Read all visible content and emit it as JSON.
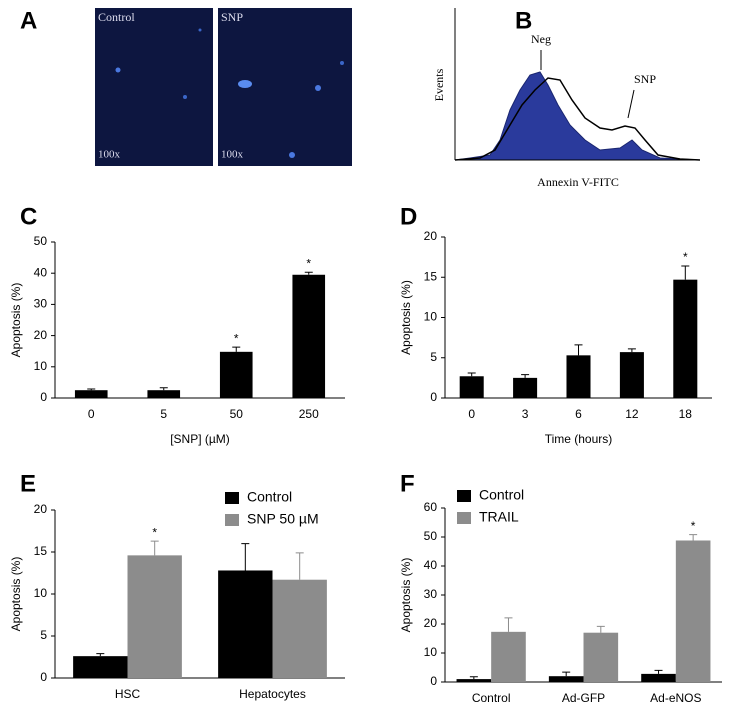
{
  "image_panel": {
    "label": "A",
    "images": [
      {
        "title": "Control",
        "magnification": "100x"
      },
      {
        "title": "SNP",
        "magnification": "100x"
      }
    ]
  },
  "flow_panel": {
    "label": "B",
    "x_label": "Annexin V-FITC",
    "y_label": "Events",
    "annotations": [
      "Neg",
      "SNP"
    ]
  },
  "chart_data": [
    {
      "type": "bar",
      "label": "C",
      "y_label": "Apoptosis (%)",
      "x_label": "[SNP] (µM)",
      "categories": [
        "0",
        "5",
        "50",
        "250"
      ],
      "values": [
        2.5,
        2.5,
        14.8,
        39.5
      ],
      "errors": [
        0.4,
        0.8,
        1.5,
        0.8
      ],
      "significance": [
        null,
        null,
        "*",
        "*"
      ],
      "color": "#000000",
      "ylim": [
        0,
        50
      ],
      "yticks": [
        0,
        10,
        20,
        30,
        40,
        50
      ]
    },
    {
      "type": "bar",
      "label": "D",
      "y_label": "Apoptosis (%)",
      "x_label": "Time (hours)",
      "categories": [
        "0",
        "3",
        "6",
        "12",
        "18"
      ],
      "values": [
        2.7,
        2.5,
        5.3,
        5.7,
        14.7
      ],
      "errors": [
        0.4,
        0.4,
        1.3,
        0.4,
        1.7
      ],
      "significance": [
        null,
        null,
        null,
        null,
        "*"
      ],
      "color": "#000000",
      "ylim": [
        0,
        20
      ],
      "yticks": [
        0,
        5,
        10,
        15,
        20
      ]
    },
    {
      "type": "grouped_bar",
      "label": "E",
      "y_label": "Apoptosis (%)",
      "legend": "upper right",
      "categories": [
        "HSC",
        "Hepatocytes"
      ],
      "series": [
        {
          "name": "Control",
          "color": "#000000",
          "values": [
            2.6,
            12.8
          ],
          "errors": [
            0.3,
            3.2
          ],
          "significance": [
            null,
            null
          ]
        },
        {
          "name": "SNP 50 µM",
          "color": "#8c8c8c",
          "values": [
            14.6,
            11.7
          ],
          "errors": [
            1.7,
            3.2
          ],
          "significance": [
            "*",
            null
          ]
        }
      ],
      "ylim": [
        0,
        20
      ],
      "yticks": [
        0,
        5,
        10,
        15,
        20
      ]
    },
    {
      "type": "grouped_bar",
      "label": "F",
      "y_label": "Apoptosis (%)",
      "legend": "upper left",
      "categories": [
        "Control",
        "Ad-GFP",
        "Ad-eNOS"
      ],
      "series": [
        {
          "name": "Control",
          "color": "#000000",
          "values": [
            1,
            2,
            2.8
          ],
          "errors": [
            0.8,
            1.4,
            1.2
          ],
          "significance": [
            null,
            null,
            null
          ]
        },
        {
          "name": "TRAIL",
          "color": "#8c8c8c",
          "values": [
            17.3,
            17,
            48.8
          ],
          "errors": [
            4.8,
            2.2,
            2
          ],
          "significance": [
            null,
            null,
            "*"
          ]
        }
      ],
      "ylim": [
        0,
        60
      ],
      "yticks": [
        0,
        10,
        20,
        30,
        40,
        50,
        60
      ]
    }
  ]
}
